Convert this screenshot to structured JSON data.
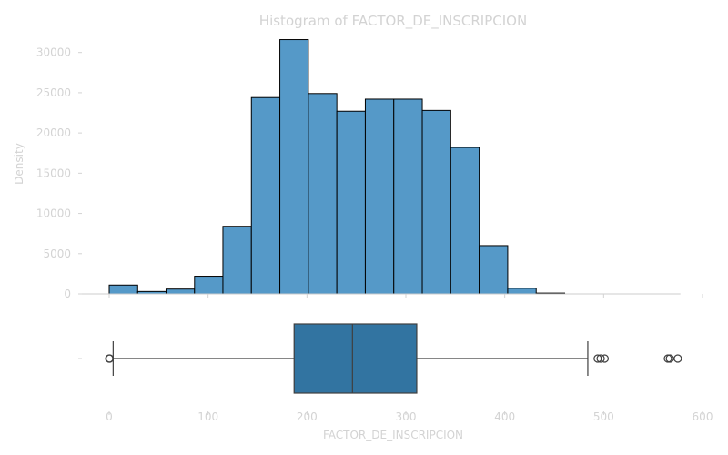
{
  "chart_data": {
    "type": "histogram+box",
    "title": "Histogram of FACTOR_DE_INSCRIPCION",
    "xlabel": "FACTOR_DE_INSCRIPCION",
    "ylabel": "Density",
    "xlim": [
      0,
      600
    ],
    "ylim": [
      0,
      32000
    ],
    "xticks": [
      0,
      100,
      200,
      300,
      400,
      500,
      600
    ],
    "yticks": [
      0,
      5000,
      10000,
      15000,
      20000,
      25000,
      30000
    ],
    "histogram": {
      "bin_edges": [
        0,
        28.8,
        57.5,
        86.3,
        115,
        143.8,
        172.6,
        201.4,
        230.2,
        259,
        287.8,
        316.6,
        345.4,
        374.2,
        403,
        431.8,
        460.6,
        489.4,
        518.2,
        547,
        575.8
      ],
      "counts": [
        1100,
        300,
        600,
        2200,
        8400,
        24400,
        31600,
        24900,
        22700,
        24200,
        24200,
        22800,
        18200,
        6000,
        700,
        100,
        0,
        0,
        0,
        0
      ],
      "color": "#5599c8",
      "edgecolor": "#000000"
    },
    "boxplot": {
      "ytick_label": "-",
      "whisker_low": 4,
      "q1": 187,
      "median": 246,
      "q3": 311,
      "whisker_high": 484,
      "outliers": [
        0,
        0.5,
        494,
        497,
        501,
        565,
        567,
        575
      ],
      "color": "#3274a1",
      "line_color": "#3f3f3f"
    }
  }
}
